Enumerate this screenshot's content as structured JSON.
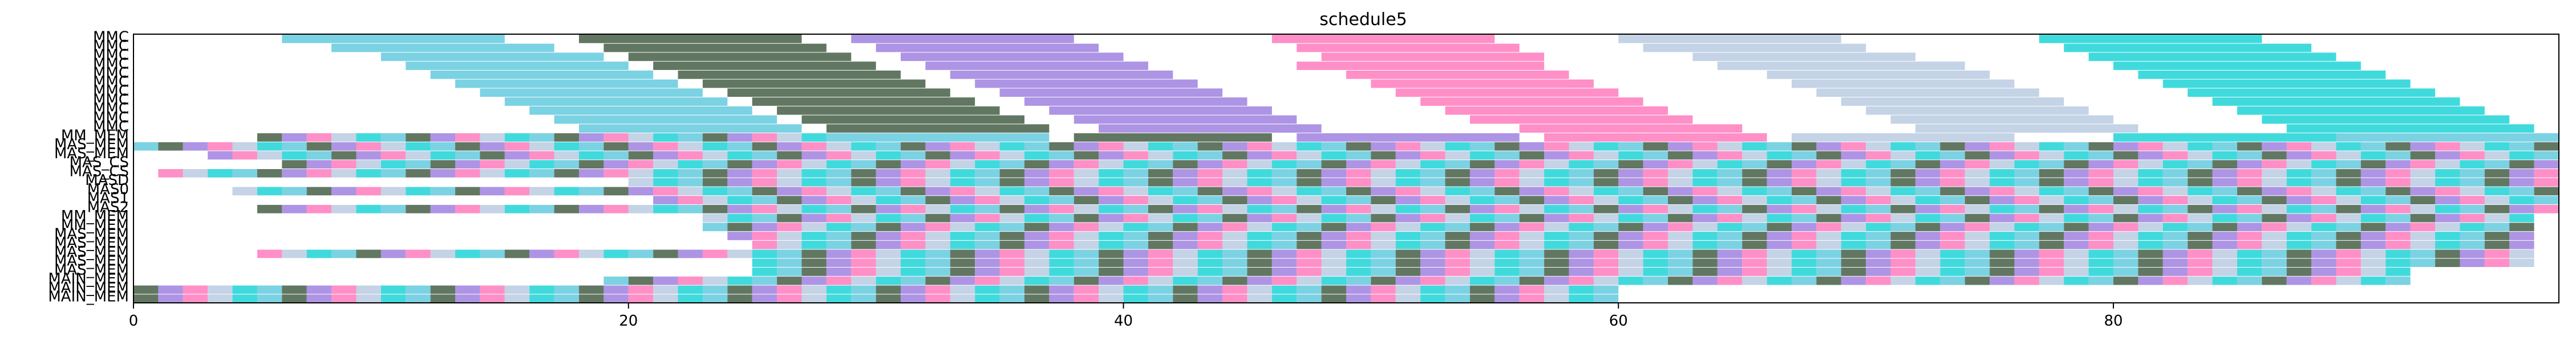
{
  "chart_data": {
    "type": "gantt",
    "title": "schedule5",
    "xlabel": "",
    "ylabel": "",
    "xlim": [
      0,
      98
    ],
    "x_ticks": [
      0,
      20,
      40,
      60,
      80
    ],
    "grid": false,
    "legend": "none",
    "rows": [
      "MMC",
      "MMC",
      "MMC",
      "MMC",
      "MMC",
      "MMC",
      "MMC",
      "MMC",
      "MMC",
      "MMC",
      "MMC",
      "MM_MEM",
      "MAS_MEM",
      "MAS_MEM",
      "MAS_CS",
      "MAS_CS",
      "MASD",
      "MAS0",
      "MAS1",
      "MAS2",
      "MM_MEM",
      "MM_MEM",
      "MAS_MEM",
      "MAS_MEM",
      "MAS_MEM",
      "MAS_MEM",
      "MAS_MEM",
      "MAIN_MEM",
      "MAIN_MEM",
      "MAIN_MEM"
    ],
    "palette": [
      "#4fc3d9",
      "#c0603a",
      "#e8524a",
      "#5b5bb8",
      "#7b3f8c",
      "#2e4a2e",
      "#6fa8dc",
      "#f4a460",
      "#50c878",
      "#ff6347",
      "#9370db",
      "#20b2aa",
      "#da70d6",
      "#8fbc8f",
      "#ffd700",
      "#ff69b4",
      "#4169e1",
      "#98fb98",
      "#cd853f",
      "#87ceeb",
      "#b0c4de",
      "#3cb371",
      "#ffa07a",
      "#6b8e23",
      "#bc8f8f",
      "#00ced1",
      "#dda0dd",
      "#f0e68c",
      "#708090",
      "#90ee90"
    ],
    "bars": [
      [
        0,
        6,
        15
      ],
      [
        0,
        18,
        27
      ],
      [
        0,
        29,
        38
      ],
      [
        0,
        46,
        55
      ],
      [
        0,
        60,
        69
      ],
      [
        0,
        77,
        86
      ],
      [
        1,
        8,
        17
      ],
      [
        1,
        19,
        28
      ],
      [
        1,
        30,
        39
      ],
      [
        1,
        47,
        56
      ],
      [
        1,
        61,
        70
      ],
      [
        1,
        78,
        88
      ],
      [
        2,
        10,
        19
      ],
      [
        2,
        20,
        29
      ],
      [
        2,
        31,
        40
      ],
      [
        2,
        48,
        57
      ],
      [
        2,
        63,
        72
      ],
      [
        2,
        79,
        89
      ],
      [
        3,
        11,
        20
      ],
      [
        3,
        21,
        30
      ],
      [
        3,
        32,
        41
      ],
      [
        3,
        47,
        57
      ],
      [
        3,
        64,
        74
      ],
      [
        3,
        80,
        90
      ],
      [
        4,
        12,
        21
      ],
      [
        4,
        22,
        31
      ],
      [
        4,
        33,
        42
      ],
      [
        4,
        49,
        58
      ],
      [
        4,
        66,
        75
      ],
      [
        4,
        81,
        91
      ],
      [
        5,
        13,
        22
      ],
      [
        5,
        23,
        32
      ],
      [
        5,
        34,
        43
      ],
      [
        5,
        50,
        59
      ],
      [
        5,
        67,
        76
      ],
      [
        5,
        82,
        92
      ],
      [
        6,
        14,
        23
      ],
      [
        6,
        24,
        33
      ],
      [
        6,
        35,
        44
      ],
      [
        6,
        51,
        60
      ],
      [
        6,
        68,
        77
      ],
      [
        6,
        83,
        93
      ],
      [
        7,
        15,
        24
      ],
      [
        7,
        25,
        34
      ],
      [
        7,
        36,
        45
      ],
      [
        7,
        52,
        61
      ],
      [
        7,
        69,
        78
      ],
      [
        7,
        84,
        94
      ],
      [
        8,
        16,
        25
      ],
      [
        8,
        26,
        35
      ],
      [
        8,
        37,
        46
      ],
      [
        8,
        53,
        62
      ],
      [
        8,
        70,
        79
      ],
      [
        8,
        85,
        95
      ],
      [
        9,
        17,
        26
      ],
      [
        9,
        27,
        36
      ],
      [
        9,
        38,
        47
      ],
      [
        9,
        54,
        63
      ],
      [
        9,
        71,
        80
      ],
      [
        9,
        86,
        96
      ],
      [
        10,
        18,
        27
      ],
      [
        10,
        28,
        37
      ],
      [
        10,
        39,
        48
      ],
      [
        10,
        56,
        65
      ],
      [
        10,
        72,
        81
      ],
      [
        10,
        87,
        97
      ],
      [
        11,
        28,
        37
      ],
      [
        11,
        38,
        46
      ],
      [
        11,
        47,
        56
      ],
      [
        11,
        57,
        66
      ],
      [
        11,
        67,
        76
      ],
      [
        11,
        80,
        89
      ],
      [
        11,
        89,
        98
      ]
    ],
    "dense_rows": [
      {
        "row": 11,
        "start": 5,
        "end": 28,
        "step": 1.0
      },
      {
        "row": 12,
        "start": 0,
        "end": 98,
        "step": 1.0
      },
      {
        "row": 13,
        "start": 3,
        "end": 98,
        "step": 1.0
      },
      {
        "row": 14,
        "start": 6,
        "end": 98,
        "step": 1.0
      },
      {
        "row": 15,
        "start": 1,
        "end": 98,
        "step": 1.0
      },
      {
        "row": 16,
        "start": 20,
        "end": 98,
        "step": 1.0
      },
      {
        "row": 17,
        "start": 4,
        "end": 98,
        "step": 1.0
      },
      {
        "row": 18,
        "start": 21,
        "end": 98,
        "step": 1.0
      },
      {
        "row": 19,
        "start": 5,
        "end": 98,
        "step": 1.0
      },
      {
        "row": 20,
        "start": 23,
        "end": 97,
        "step": 1.0
      },
      {
        "row": 21,
        "start": 23,
        "end": 97,
        "step": 1.0
      },
      {
        "row": 22,
        "start": 24,
        "end": 97,
        "step": 1.0
      },
      {
        "row": 23,
        "start": 25,
        "end": 97,
        "step": 1.0
      },
      {
        "row": 24,
        "start": 5,
        "end": 97,
        "step": 1.0
      },
      {
        "row": 25,
        "start": 25,
        "end": 97,
        "step": 1.0
      },
      {
        "row": 26,
        "start": 25,
        "end": 92,
        "step": 1.0
      },
      {
        "row": 27,
        "start": 19,
        "end": 92,
        "step": 1.0
      },
      {
        "row": 28,
        "start": 0,
        "end": 60,
        "step": 1.0
      },
      {
        "row": 29,
        "start": 0,
        "end": 60,
        "step": 1.0
      }
    ]
  }
}
